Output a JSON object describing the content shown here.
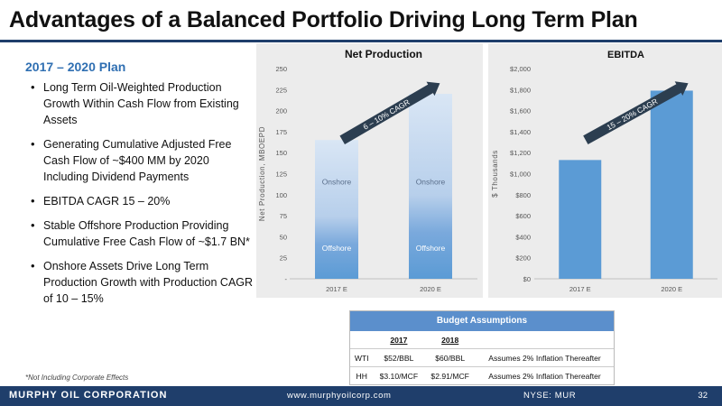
{
  "slide": {
    "title": "Advantages of a Balanced Portfolio Driving Long Term Plan",
    "plan_heading": "2017 – 2020 Plan",
    "bullets": [
      "Long Term Oil-Weighted Production Growth Within Cash Flow from Existing Assets",
      "Generating Cumulative Adjusted Free Cash Flow of ~$400 MM by 2020 Including Dividend Payments",
      "EBITDA CAGR 15 – 20%",
      "Stable Offshore Production Providing Cumulative Free Cash Flow of ~$1.7 BN*",
      "Onshore Assets Drive Long Term Production Growth with Production CAGR of 10 – 15%"
    ],
    "footnote": "*Not Including Corporate Effects"
  },
  "chart_data": [
    {
      "type": "bar",
      "title": "Net Production",
      "ylabel": "Net Production, MBOEPD",
      "categories": [
        "2017 E",
        "2020 E"
      ],
      "values": [
        165,
        220
      ],
      "ylim": [
        0,
        250
      ],
      "yticks": [
        0,
        25,
        50,
        75,
        100,
        125,
        150,
        175,
        200,
        225,
        250
      ],
      "ytick_labels": [
        "-",
        "25",
        "50",
        "75",
        "100",
        "125",
        "150",
        "175",
        "200",
        "225",
        "250"
      ],
      "segment_labels": {
        "lower": "Offshore",
        "upper": "Onshore"
      },
      "annotation": "6 – 10% CAGR",
      "bar_color": "#5b9bd5",
      "grid": false
    },
    {
      "type": "bar",
      "title": "EBITDA",
      "ylabel": "$ Thousands",
      "categories": [
        "2017 E",
        "2020 E"
      ],
      "values": [
        1130,
        1790
      ],
      "ylim": [
        0,
        2000
      ],
      "yticks": [
        0,
        200,
        400,
        600,
        800,
        1000,
        1200,
        1400,
        1600,
        1800,
        2000
      ],
      "ytick_labels": [
        "$0",
        "$200",
        "$400",
        "$600",
        "$800",
        "$1,000",
        "$1,200",
        "$1,400",
        "$1,600",
        "$1,800",
        "$2,000"
      ],
      "annotation": "15 – 20% CAGR",
      "bar_color": "#5b9bd5",
      "grid": false
    }
  ],
  "budget": {
    "title": "Budget Assumptions",
    "years": [
      "2017",
      "2018"
    ],
    "rows": [
      {
        "name": "WTI",
        "y2017": "$52/BBL",
        "y2018": "$60/BBL",
        "note": "Assumes 2% Inflation Thereafter"
      },
      {
        "name": "HH",
        "y2017": "$3.10/MCF",
        "y2018": "$2.91/MCF",
        "note": "Assumes 2% Inflation Thereafter"
      }
    ]
  },
  "footer": {
    "company": "MURPHY OIL CORPORATION",
    "url": "www.murphyoilcorp.com",
    "ticker": "NYSE: MUR",
    "page": "32"
  },
  "colors": {
    "navy": "#1f3e6b",
    "accent_blue": "#2f6fb2",
    "bar_blue": "#5b9bd5",
    "arrow": "#2c3e50",
    "panel_bg": "#ececec"
  }
}
